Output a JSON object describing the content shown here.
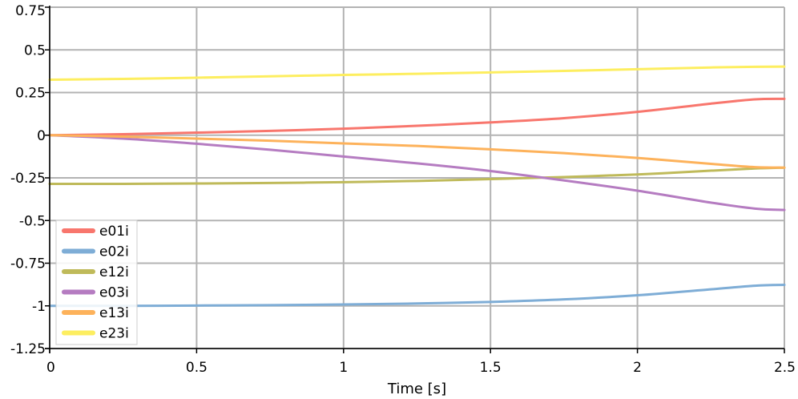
{
  "chart_data": {
    "type": "line",
    "xlabel": "Time [s]",
    "ylabel": "",
    "xlim": [
      0,
      2.5
    ],
    "ylim": [
      -1.25,
      0.75
    ],
    "xticks": [
      0,
      0.5,
      1,
      1.5,
      2,
      2.5
    ],
    "xtick_labels": [
      "0",
      "0.5",
      "1",
      "1.5",
      "2",
      "2.5"
    ],
    "yticks": [
      0.75,
      0.5,
      0.25,
      0,
      -0.25,
      -0.5,
      -0.75,
      -1,
      -1.25
    ],
    "ytick_labels": [
      "0.75",
      "0.5",
      "0.25",
      "0",
      "-0.25",
      "-0.5",
      "-0.75",
      "-1",
      "-1.25"
    ],
    "grid": true,
    "legend_position": "bottom-left",
    "x": [
      0,
      0.25,
      0.5,
      0.75,
      1,
      1.25,
      1.5,
      1.75,
      2,
      2.25,
      2.4,
      2.5
    ],
    "series": [
      {
        "name": "e01i",
        "color": "#f8766d",
        "values": [
          0,
          0.006,
          0.015,
          0.025,
          0.038,
          0.055,
          0.075,
          0.1,
          0.137,
          0.185,
          0.21,
          0.213
        ]
      },
      {
        "name": "e02i",
        "color": "#7eadd6",
        "values": [
          -1,
          -1,
          -0.998,
          -0.996,
          -0.992,
          -0.986,
          -0.977,
          -0.962,
          -0.938,
          -0.903,
          -0.882,
          -0.877
        ]
      },
      {
        "name": "e12i",
        "color": "#bfba5a",
        "values": [
          -0.285,
          -0.285,
          -0.283,
          -0.28,
          -0.275,
          -0.268,
          -0.257,
          -0.245,
          -0.23,
          -0.208,
          -0.195,
          -0.19
        ]
      },
      {
        "name": "e03i",
        "color": "#b57cc1",
        "values": [
          0,
          -0.02,
          -0.05,
          -0.085,
          -0.125,
          -0.165,
          -0.21,
          -0.265,
          -0.325,
          -0.395,
          -0.43,
          -0.438
        ]
      },
      {
        "name": "e13i",
        "color": "#fdb25b",
        "values": [
          0,
          -0.008,
          -0.02,
          -0.032,
          -0.048,
          -0.063,
          -0.083,
          -0.105,
          -0.133,
          -0.168,
          -0.187,
          -0.19
        ]
      },
      {
        "name": "e23i",
        "color": "#fdee60",
        "values": [
          0.325,
          0.33,
          0.337,
          0.345,
          0.353,
          0.36,
          0.368,
          0.377,
          0.387,
          0.397,
          0.401,
          0.402
        ]
      }
    ]
  }
}
